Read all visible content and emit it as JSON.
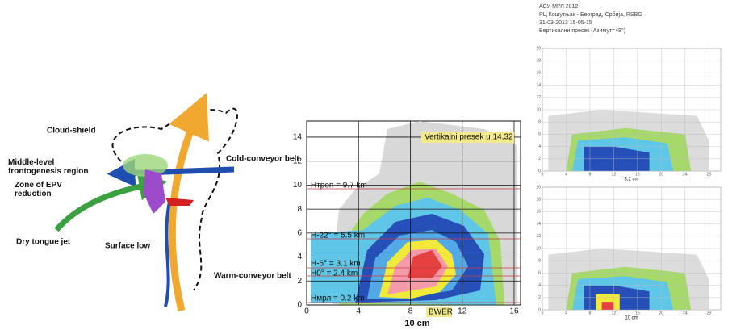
{
  "diagram": {
    "labels": [
      "Cloud-shield",
      "Middle-level frontogenesis region",
      "Zone of EPV reduction",
      "Cold-conveyor belt",
      "Dry tongue jet",
      "Surface low",
      "Warm-conveyor belt"
    ]
  },
  "middle": {
    "annotation": "Vertikalni presek u 14,32",
    "levels": [
      "Hтроп = 9.7 km",
      "H-22° = 5.5 km",
      "H-6° = 3.1 km",
      "H0° = 2.4 km",
      "Hмрл = 0.2 km"
    ],
    "bwer": "BWER",
    "x_label": "10 cm",
    "xticks": [
      0,
      4,
      8,
      12,
      16
    ],
    "yticks": [
      0,
      2,
      4,
      6,
      8,
      10,
      12,
      14
    ]
  },
  "right": {
    "header": [
      "АСУ-МРЛ 2012",
      "РЦ Кошутњак - Београд, Србија, RSBG",
      "31-03-2013 15-05-15",
      "Вертикални пресек (Азимут=48°)"
    ],
    "panels": [
      {
        "x_label": "3,2 cm",
        "yticks": [
          0,
          2,
          4,
          6,
          8,
          10,
          12,
          14,
          16,
          18,
          20
        ],
        "xticks": [
          0,
          4,
          8,
          12,
          16,
          20,
          24,
          28
        ]
      },
      {
        "x_label": "10 cm",
        "yticks": [
          0,
          2,
          4,
          6,
          8,
          10,
          12,
          14,
          16,
          18,
          20
        ],
        "xticks": [
          0,
          4,
          8,
          12,
          16,
          20,
          24,
          28
        ]
      }
    ]
  }
}
